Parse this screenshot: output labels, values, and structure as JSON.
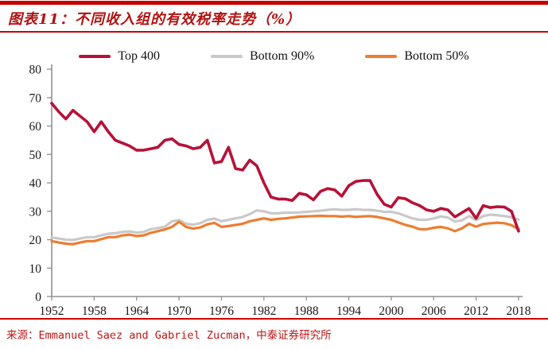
{
  "header": {
    "title": "图表11：不同收入组的有效税率走势（%）",
    "accent_color": "#c80000"
  },
  "footer": {
    "source": "来源：Emmanuel Saez and Gabriel Zucman，中泰证券研究所"
  },
  "chart_data": {
    "type": "line",
    "title": "不同收入组的有效税率走势（%）",
    "x_start": 1952,
    "x_end": 2018,
    "ylim": [
      0,
      80
    ],
    "yticks": [
      0,
      10,
      20,
      30,
      40,
      50,
      60,
      70,
      80
    ],
    "xticks": [
      1952,
      1958,
      1964,
      1970,
      1976,
      1982,
      1988,
      1994,
      2000,
      2006,
      2012,
      2018
    ],
    "grid": false,
    "legend_position": "top",
    "axis_color": "#909090",
    "series": [
      {
        "name": "Top 400",
        "color": "#b61238",
        "width": 3.6,
        "values": [
          68.0,
          65.0,
          62.5,
          65.5,
          63.5,
          61.5,
          58.0,
          61.5,
          58.0,
          55.0,
          54.0,
          53.0,
          51.5,
          51.5,
          52.0,
          52.5,
          55.0,
          55.5,
          53.5,
          53.0,
          52.0,
          52.5,
          55.0,
          47.0,
          47.5,
          52.5,
          45.0,
          44.5,
          48.0,
          46.0,
          40.0,
          35.0,
          34.3,
          34.3,
          33.8,
          36.3,
          35.8,
          34.0,
          37.0,
          38.0,
          37.5,
          35.3,
          39.0,
          40.5,
          40.8,
          40.8,
          36.0,
          32.5,
          31.5,
          34.8,
          34.4,
          33.0,
          32.0,
          30.5,
          30.0,
          31.0,
          30.5,
          28.0,
          29.5,
          31.0,
          27.5,
          32.0,
          31.3,
          31.6,
          31.5,
          30.0,
          23.0
        ]
      },
      {
        "name": "Bottom 90%",
        "color": "#c9c9c9",
        "width": 3.2,
        "values": [
          20.8,
          20.4,
          20.0,
          19.9,
          20.4,
          20.9,
          20.9,
          21.5,
          22.1,
          22.3,
          22.7,
          22.9,
          22.5,
          22.7,
          23.7,
          24.1,
          24.6,
          26.5,
          26.9,
          25.6,
          25.3,
          25.8,
          27.0,
          27.4,
          26.5,
          27.0,
          27.5,
          28.0,
          29.0,
          30.3,
          30.0,
          29.3,
          29.3,
          29.5,
          29.5,
          29.6,
          29.8,
          30.0,
          30.2,
          30.5,
          30.7,
          30.5,
          30.5,
          30.7,
          30.5,
          30.5,
          30.2,
          29.8,
          29.8,
          29.3,
          28.4,
          27.5,
          27.0,
          27.0,
          27.5,
          28.2,
          27.8,
          26.4,
          26.8,
          28.3,
          26.9,
          28.3,
          28.8,
          28.6,
          28.3,
          27.9,
          27.0
        ]
      },
      {
        "name": "Bottom 50%",
        "color": "#ed7d31",
        "width": 3.2,
        "values": [
          19.5,
          19.0,
          18.6,
          18.4,
          19.0,
          19.5,
          19.5,
          20.2,
          20.9,
          20.9,
          21.5,
          21.8,
          21.3,
          21.5,
          22.4,
          23.0,
          23.6,
          24.5,
          26.3,
          24.5,
          23.9,
          24.3,
          25.4,
          25.9,
          24.5,
          24.8,
          25.2,
          25.6,
          26.5,
          27.0,
          27.5,
          27.0,
          27.3,
          27.5,
          27.8,
          28.1,
          28.2,
          28.3,
          28.4,
          28.3,
          28.3,
          28.1,
          28.3,
          28.0,
          28.2,
          28.3,
          28.0,
          27.5,
          27.0,
          26.1,
          25.2,
          24.6,
          23.7,
          23.7,
          24.2,
          24.5,
          24.0,
          23.0,
          24.0,
          25.6,
          24.6,
          25.5,
          25.8,
          26.0,
          25.8,
          25.1,
          23.7
        ]
      }
    ]
  }
}
